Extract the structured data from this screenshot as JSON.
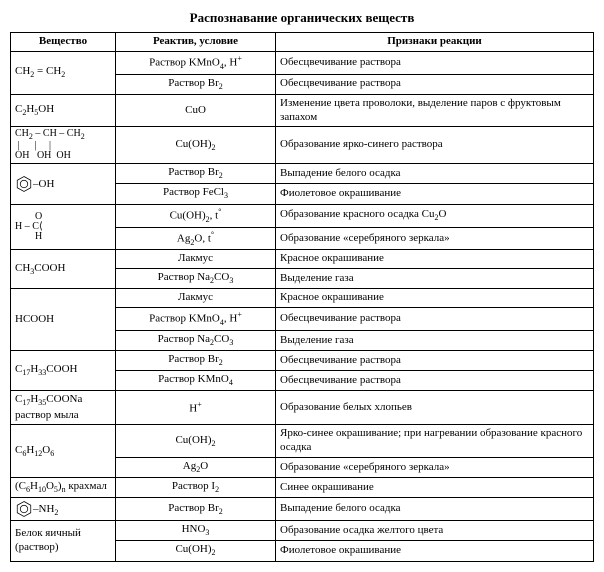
{
  "title": "Распознавание органических веществ",
  "headers": {
    "substance": "Вещество",
    "reagent": "Реактив, условие",
    "signs": "Признаки реакции"
  },
  "rows": [
    {
      "sub": "CH₂ = CH₂",
      "rowspan": 2,
      "react": "Раствор KMnO₄, H⁺",
      "sign": "Обесцвечивание раствора"
    },
    {
      "react": "Раствор Br₂",
      "sign": "Обесцвечивание раствора"
    },
    {
      "sub": "C₂H₅OH",
      "react": "CuO",
      "sign": "Изменение цвета проволоки, выделение паров с фруктовым запахом"
    },
    {
      "sub_struct": "glycerol",
      "react": "Cu(OH)₂",
      "sign": "Образование ярко-синего раствора"
    },
    {
      "sub_struct": "phenol",
      "rowspan": 2,
      "react": "Раствор Br₂",
      "sign": "Выпадение белого осадка"
    },
    {
      "react": "Раствор FeCl₃",
      "sign": "Фиолетовое окрашивание"
    },
    {
      "sub_struct": "formaldehyde",
      "rowspan": 2,
      "react": "Cu(OH)₂, t°",
      "sign": "Образование красного осадка Cu₂O"
    },
    {
      "react": "Ag₂O, t°",
      "sign": "Образование «серебряного зеркала»"
    },
    {
      "sub": "CH₃COOH",
      "rowspan": 2,
      "react": "Лакмус",
      "sign": "Красное окрашивание"
    },
    {
      "react": "Раствор Na₂CO₃",
      "sign": "Выделение газа"
    },
    {
      "sub": "HCOOH",
      "rowspan": 3,
      "react": "Лакмус",
      "sign": "Красное окрашивание"
    },
    {
      "react": "Раствор KMnO₄, H⁺",
      "sign": "Обесцвечивание раствора"
    },
    {
      "react": "Раствор Na₂CO₃",
      "sign": "Выделение газа"
    },
    {
      "sub": "C₁₇H₃₃COOH",
      "rowspan": 2,
      "react": "Раствор Br₂",
      "sign": "Обесцвечивание раствора"
    },
    {
      "react": "Раствор KMnO₄",
      "sign": "Обесцвечивание раствора"
    },
    {
      "sub": "C₁₇H₃₅COONa раствор мыла",
      "react": "H⁺",
      "sign": "Образование белых хлопьев"
    },
    {
      "sub": "C₆H₁₂O₆",
      "rowspan": 2,
      "react": "Cu(OH)₂",
      "sign": "Ярко-синее окрашивание; при нагревании образование красного осадка"
    },
    {
      "react": "Ag₂O",
      "sign": "Образование «серебряного зеркала»"
    },
    {
      "sub": "(C₆H₁₀O₅)ₙ крахмал",
      "react": "Раствор I₂",
      "sign": "Синее окрашивание"
    },
    {
      "sub_struct": "aniline",
      "react": "Раствор Br₂",
      "sign": "Выпадение белого осадка"
    },
    {
      "sub": "Белок яич­ный (раствор)",
      "rowspan": 2,
      "react": "HNO₃",
      "sign": "Образование осадка желтого цвета"
    },
    {
      "react": "Cu(OH)₂",
      "sign": "Фиолетовое окрашивание"
    }
  ]
}
